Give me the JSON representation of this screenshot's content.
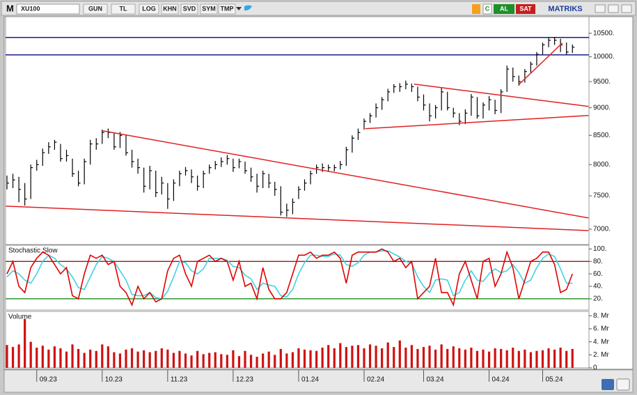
{
  "toolbar": {
    "logo": "M",
    "symbol": "XU100",
    "buttons": [
      "GUN",
      "TL",
      "LOG",
      "KHN",
      "SVD",
      "SYM",
      "TMP"
    ],
    "c": "C",
    "buy": "AL",
    "sell": "SAT",
    "brand": "MATRIKS"
  },
  "chart_data": [
    {
      "type": "ohlc",
      "color": "#000000",
      "log_scale": true,
      "ylim": [
        6790,
        10850
      ],
      "yticks": [
        {
          "value": 7000,
          "label": "7000."
        },
        {
          "value": 7500,
          "label": "7500."
        },
        {
          "value": 8000,
          "label": "8000."
        },
        {
          "value": 8500,
          "label": "8500."
        },
        {
          "value": 9000,
          "label": "9000."
        },
        {
          "value": 9500,
          "label": "9500."
        },
        {
          "value": 10000,
          "label": "10000."
        },
        {
          "value": 10500,
          "label": "10500."
        }
      ],
      "high": [
        7820,
        7850,
        7800,
        7700,
        8000,
        8080,
        8270,
        8380,
        8420,
        8350,
        8250,
        8100,
        7900,
        8100,
        8420,
        8450,
        8600,
        8620,
        8550,
        8560,
        8500,
        8250,
        8100,
        7950,
        7980,
        7900,
        7800,
        7700,
        7760,
        7900,
        7960,
        7920,
        7820,
        7900,
        8000,
        8060,
        8120,
        8160,
        8100,
        8100,
        8050,
        7950,
        7850,
        7900,
        7850,
        7720,
        7650,
        7380,
        7460,
        7650,
        7760,
        7900,
        8000,
        8020,
        8000,
        8000,
        8060,
        8300,
        8500,
        8620,
        8800,
        8900,
        9080,
        9200,
        9360,
        9450,
        9470,
        9520,
        9460,
        9400,
        9250,
        9080,
        9050,
        9380,
        9300,
        9000,
        8900,
        8970,
        9260,
        9200,
        9100,
        9220,
        9150,
        9350,
        9820,
        9780,
        9620,
        9750,
        9900,
        10100,
        10300,
        10400,
        10420,
        10380,
        10300,
        10260
      ],
      "low": [
        7600,
        7620,
        7400,
        7350,
        7450,
        7900,
        7980,
        8180,
        8250,
        8050,
        8050,
        7800,
        7650,
        7680,
        8000,
        8250,
        8350,
        8450,
        8250,
        8280,
        8150,
        7950,
        7850,
        7550,
        7600,
        7480,
        7520,
        7300,
        7420,
        7650,
        7820,
        7700,
        7580,
        7620,
        7850,
        7920,
        7960,
        8000,
        7880,
        7940,
        7850,
        7720,
        7550,
        7620,
        7620,
        7500,
        7200,
        7180,
        7220,
        7450,
        7580,
        7680,
        7850,
        7880,
        7880,
        7890,
        7920,
        7980,
        8200,
        8420,
        8600,
        8720,
        8820,
        8960,
        9120,
        9280,
        9300,
        9350,
        9300,
        9120,
        8950,
        8750,
        8800,
        8950,
        8950,
        8820,
        8680,
        8700,
        8850,
        8800,
        8800,
        8950,
        8880,
        8900,
        9300,
        9500,
        9420,
        9480,
        9680,
        9820,
        10050,
        10200,
        10250,
        10100,
        10050,
        10080
      ],
      "close": [
        7700,
        7750,
        7600,
        7450,
        7950,
        8000,
        8200,
        8300,
        8380,
        8100,
        8150,
        7850,
        7700,
        8050,
        8350,
        8350,
        8550,
        8550,
        8300,
        8500,
        8200,
        8050,
        7950,
        7650,
        7900,
        7550,
        7700,
        7450,
        7700,
        7850,
        7900,
        7800,
        7650,
        7850,
        7950,
        8000,
        8050,
        8100,
        7950,
        8050,
        7900,
        7800,
        7650,
        7850,
        7700,
        7600,
        7250,
        7280,
        7400,
        7600,
        7700,
        7850,
        7950,
        7950,
        7950,
        7950,
        8000,
        8250,
        8450,
        8550,
        8750,
        8850,
        9000,
        9150,
        9300,
        9400,
        9400,
        9450,
        9400,
        9200,
        9050,
        8850,
        9000,
        9300,
        9000,
        8900,
        8750,
        8900,
        9200,
        8850,
        9050,
        9150,
        8950,
        9300,
        9750,
        9600,
        9500,
        9700,
        9850,
        10050,
        10250,
        10350,
        10350,
        10250,
        10100,
        10200
      ],
      "hlines": [
        10410,
        10040
      ],
      "hline_color": "#1a1a8c",
      "trendlines": [
        {
          "x": [
            16.1,
            97.7
          ],
          "y": [
            8580,
            7163
          ]
        },
        {
          "x": [
            -0.2,
            97.7
          ],
          "y": [
            7341,
            6979
          ]
        },
        {
          "x": [
            68.4,
            97.7
          ],
          "y": [
            9450,
            9024
          ]
        },
        {
          "x": [
            60.2,
            97.7
          ],
          "y": [
            8617,
            8856
          ]
        },
        {
          "x": [
            86,
            93.3
          ],
          "y": [
            9442,
            10290
          ]
        }
      ],
      "trend_color": "#e02020"
    },
    {
      "type": "line",
      "title": "Stochastic Slow",
      "ylim": [
        2,
        106
      ],
      "yticks": [
        {
          "value": 20,
          "label": "20."
        },
        {
          "value": 40,
          "label": "40."
        },
        {
          "value": 60,
          "label": "60."
        },
        {
          "value": 80,
          "label": "80."
        },
        {
          "value": 100,
          "label": "100."
        }
      ],
      "levels": [
        {
          "value": 80,
          "color": "#8b0000"
        },
        {
          "value": 20,
          "color": "#008000"
        }
      ],
      "series": [
        {
          "color": "#e00000",
          "values": [
            60,
            80,
            40,
            30,
            70,
            85,
            95,
            90,
            75,
            60,
            70,
            25,
            20,
            60,
            90,
            85,
            90,
            75,
            80,
            40,
            30,
            10,
            40,
            20,
            30,
            15,
            20,
            65,
            85,
            90,
            60,
            40,
            80,
            85,
            90,
            80,
            85,
            80,
            50,
            80,
            40,
            45,
            20,
            70,
            35,
            20,
            20,
            30,
            60,
            90,
            90,
            95,
            85,
            90,
            90,
            95,
            85,
            45,
            90,
            95,
            95,
            95,
            95,
            100,
            95,
            80,
            85,
            70,
            80,
            20,
            30,
            40,
            85,
            30,
            30,
            10,
            60,
            80,
            50,
            20,
            80,
            85,
            40,
            60,
            95,
            70,
            20,
            50,
            80,
            85,
            95,
            95,
            75,
            30,
            35,
            60
          ]
        },
        {
          "color": "#3fd3e0",
          "values": [
            55,
            65,
            60,
            50,
            45,
            60,
            80,
            90,
            85,
            75,
            68,
            55,
            38,
            35,
            55,
            75,
            88,
            85,
            80,
            65,
            50,
            27,
            25,
            25,
            30,
            22,
            20,
            32,
            55,
            80,
            78,
            65,
            60,
            68,
            85,
            85,
            85,
            82,
            72,
            70,
            58,
            52,
            35,
            45,
            42,
            40,
            25,
            23,
            35,
            60,
            78,
            90,
            90,
            88,
            88,
            92,
            90,
            75,
            72,
            78,
            90,
            95,
            95,
            97,
            97,
            92,
            87,
            80,
            77,
            55,
            40,
            30,
            50,
            52,
            50,
            25,
            30,
            50,
            65,
            50,
            48,
            60,
            68,
            62,
            65,
            75,
            62,
            45,
            50,
            70,
            85,
            92,
            88,
            68,
            45,
            45
          ]
        }
      ]
    },
    {
      "type": "bar",
      "title": "Volume",
      "color": "#d01010",
      "ylim": [
        0,
        8.67
      ],
      "yticks": [
        0,
        {
          "value": 2,
          "label": "2. Mr"
        },
        {
          "value": 4,
          "label": "4. Mr"
        },
        {
          "value": 6,
          "label": "6. Mr"
        },
        {
          "value": 8,
          "label": "8. Mr"
        }
      ],
      "categories": [
        null,
        null,
        null,
        null,
        null,
        "09.23",
        null,
        null,
        null,
        null,
        null,
        null,
        null,
        null,
        null,
        null,
        "10.23",
        null,
        null,
        null,
        null,
        null,
        null,
        null,
        null,
        null,
        null,
        "11.23",
        null,
        null,
        null,
        null,
        null,
        null,
        null,
        null,
        null,
        null,
        "12.23",
        null,
        null,
        null,
        null,
        null,
        null,
        null,
        null,
        null,
        null,
        "01.24",
        null,
        null,
        null,
        null,
        null,
        null,
        null,
        null,
        null,
        null,
        "02.24",
        null,
        null,
        null,
        null,
        null,
        null,
        null,
        null,
        null,
        "03.24",
        null,
        null,
        null,
        null,
        null,
        null,
        null,
        null,
        null,
        null,
        "04.24",
        null,
        null,
        null,
        null,
        null,
        null,
        null,
        null,
        "05.24",
        null,
        null,
        null,
        null,
        null
      ],
      "values": [
        3.5,
        3.2,
        3.6,
        7.5,
        4.0,
        3.1,
        3.4,
        2.8,
        3.3,
        3.0,
        2.5,
        3.6,
        2.9,
        2.3,
        2.8,
        2.6,
        3.6,
        3.3,
        2.4,
        2.2,
        2.8,
        3.0,
        2.5,
        2.7,
        2.4,
        2.6,
        3.0,
        2.8,
        2.3,
        2.6,
        2.2,
        1.9,
        2.6,
        2.1,
        2.3,
        2.4,
        2.1,
        2.0,
        2.7,
        1.8,
        2.6,
        2.0,
        1.7,
        2.2,
        2.5,
        2.0,
        2.9,
        2.2,
        2.4,
        3.0,
        2.8,
        2.7,
        2.6,
        3.1,
        3.5,
        3.0,
        3.8,
        3.2,
        3.4,
        3.5,
        3.0,
        3.6,
        3.4,
        3.0,
        3.9,
        3.2,
        4.2,
        3.1,
        3.5,
        2.9,
        3.2,
        3.4,
        2.8,
        3.6,
        2.9,
        3.3,
        3.0,
        2.8,
        3.1,
        2.6,
        2.8,
        2.5,
        3.0,
        2.9,
        2.7,
        3.1,
        2.6,
        2.8,
        2.4,
        2.6,
        2.7,
        3.0,
        2.8,
        3.1,
        2.6,
        2.9
      ]
    }
  ]
}
